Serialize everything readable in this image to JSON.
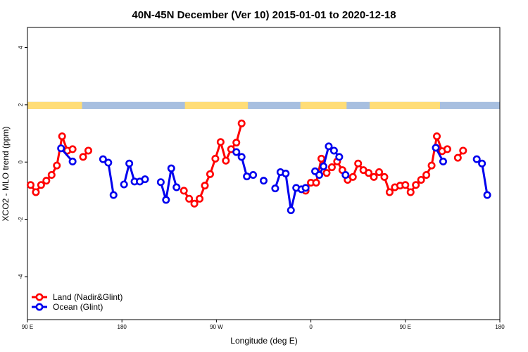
{
  "chart_data": {
    "type": "line",
    "title": "40N-45N December (Ver 10)   2015-01-01 to 2020-12-18",
    "xlabel": "Longitude (deg E)",
    "ylabel": "XCO2 - MLO trend (ppm)",
    "xlim": [
      90,
      540
    ],
    "ylim": [
      -5.5,
      4.7
    ],
    "x_ticks": [
      90,
      180,
      270,
      360,
      450,
      540
    ],
    "x_tick_labels": [
      "90 E",
      "180",
      "90 W",
      "0",
      "90 E",
      "180"
    ],
    "y_ticks": [
      -4,
      -2,
      0,
      2,
      4
    ],
    "y_tick_labels": [
      "-4",
      "-2",
      "0",
      "2",
      "4"
    ],
    "grid": false,
    "legend_position": "bottom-left",
    "colors": {
      "land": "#ff0000",
      "ocean": "#0000ee",
      "land_strip": "#ffdd77",
      "ocean_strip": "#a7bfe0"
    },
    "landmask_strip": {
      "y_range": [
        1.85,
        2.1
      ],
      "land_segments": [
        [
          90,
          142
        ],
        [
          240,
          300
        ],
        [
          350,
          394
        ],
        [
          416,
          483
        ]
      ]
    },
    "series": [
      {
        "name": "Land (Nadir&Glint)",
        "color": "#ff0000",
        "segments": [
          [
            [
              93,
              -0.8
            ],
            [
              98,
              -1.05
            ],
            [
              103,
              -0.8
            ],
            [
              108,
              -0.65
            ],
            [
              113,
              -0.45
            ],
            [
              118,
              -0.12
            ],
            [
              123,
              0.9
            ],
            [
              128,
              0.4
            ],
            [
              133,
              0.45
            ]
          ],
          [
            [
              143,
              0.18
            ],
            [
              148,
              0.4
            ]
          ],
          [
            [
              239,
              -1.0
            ],
            [
              244,
              -1.28
            ],
            [
              249,
              -1.45
            ],
            [
              254,
              -1.28
            ],
            [
              259,
              -0.82
            ],
            [
              264,
              -0.42
            ],
            [
              269,
              0.12
            ],
            [
              274,
              0.7
            ],
            [
              279,
              0.05
            ],
            [
              284,
              0.45
            ],
            [
              289,
              0.68
            ],
            [
              294,
              1.35
            ]
          ],
          [
            [
              355,
              -1.0
            ],
            [
              360,
              -0.72
            ],
            [
              365,
              -0.72
            ],
            [
              370,
              0.12
            ],
            [
              375,
              -0.38
            ],
            [
              380,
              -0.18
            ],
            [
              385,
              0.02
            ],
            [
              390,
              -0.28
            ],
            [
              395,
              -0.62
            ],
            [
              400,
              -0.52
            ],
            [
              405,
              -0.05
            ],
            [
              410,
              -0.28
            ],
            [
              415,
              -0.38
            ],
            [
              420,
              -0.52
            ],
            [
              425,
              -0.35
            ],
            [
              430,
              -0.52
            ],
            [
              435,
              -1.05
            ],
            [
              440,
              -0.88
            ],
            [
              445,
              -0.82
            ],
            [
              450,
              -0.8
            ],
            [
              455,
              -1.05
            ],
            [
              460,
              -0.8
            ],
            [
              465,
              -0.62
            ],
            [
              470,
              -0.45
            ],
            [
              475,
              -0.12
            ],
            [
              480,
              0.9
            ],
            [
              485,
              0.38
            ],
            [
              490,
              0.45
            ]
          ],
          [
            [
              500,
              0.15
            ],
            [
              505,
              0.4
            ]
          ]
        ]
      },
      {
        "name": "Ocean (Glint)",
        "color": "#0000ee",
        "segments": [
          [
            [
              122,
              0.48
            ],
            [
              133,
              0.02
            ]
          ],
          [
            [
              162,
              0.1
            ],
            [
              167,
              -0.02
            ],
            [
              172,
              -1.15
            ]
          ],
          [
            [
              182,
              -0.78
            ],
            [
              187,
              -0.05
            ],
            [
              192,
              -0.68
            ],
            [
              197,
              -0.68
            ],
            [
              202,
              -0.6
            ]
          ],
          [
            [
              217,
              -0.7
            ],
            [
              222,
              -1.32
            ],
            [
              227,
              -0.22
            ],
            [
              232,
              -0.88
            ]
          ],
          [
            [
              289,
              0.35
            ],
            [
              294,
              0.18
            ],
            [
              299,
              -0.5
            ],
            [
              305,
              -0.45
            ]
          ],
          [
            [
              315,
              -0.65
            ]
          ],
          [
            [
              326,
              -0.92
            ],
            [
              331,
              -0.35
            ],
            [
              336,
              -0.4
            ],
            [
              341,
              -1.68
            ],
            [
              346,
              -0.9
            ],
            [
              351,
              -0.95
            ],
            [
              355,
              -0.9
            ]
          ],
          [
            [
              364,
              -0.32
            ],
            [
              368,
              -0.45
            ],
            [
              372,
              -0.15
            ],
            [
              377,
              0.55
            ],
            [
              382,
              0.4
            ],
            [
              387,
              0.18
            ]
          ],
          [
            [
              393,
              -0.45
            ]
          ],
          [
            [
              479,
              0.5
            ],
            [
              486,
              0.02
            ]
          ],
          [
            [
              518,
              0.1
            ],
            [
              523,
              -0.05
            ],
            [
              528,
              -1.15
            ]
          ]
        ]
      }
    ]
  }
}
